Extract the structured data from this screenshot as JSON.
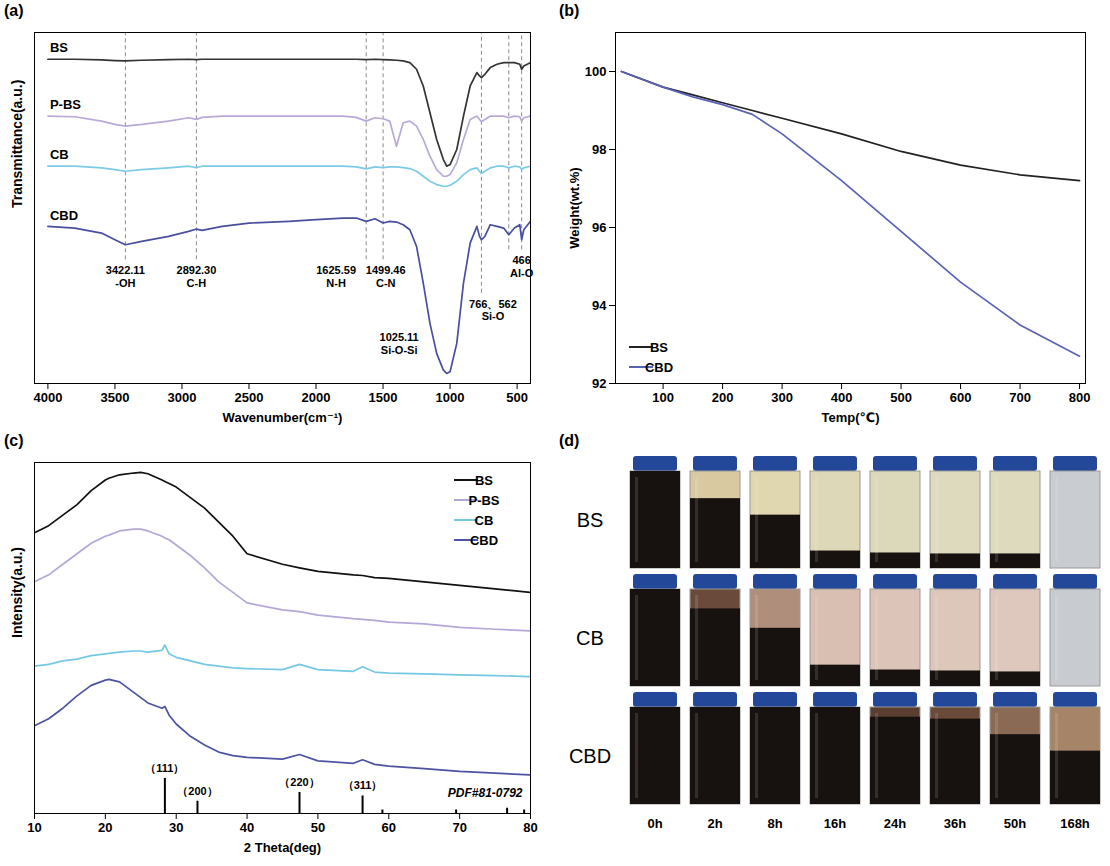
{
  "chart_data": [
    {
      "panel": "(a)",
      "type": "line",
      "x_label": "Wavenumber(cm⁻¹)",
      "y_label": "Transmittance(a.u.)",
      "xlim": [
        4100,
        400
      ],
      "xticks": [
        4000,
        3500,
        3000,
        2500,
        2000,
        1500,
        1000,
        500
      ],
      "ylim": [
        0,
        105
      ],
      "tick_labels": "x",
      "x": [
        4000,
        3800,
        3600,
        3500,
        3422.11,
        3300,
        3100,
        2950,
        2892.3,
        2850,
        2700,
        2500,
        2200,
        2000,
        1800,
        1700,
        1625.59,
        1560,
        1499.46,
        1450,
        1400,
        1350,
        1300,
        1250,
        1200,
        1150,
        1100,
        1050,
        1025.11,
        1000,
        950,
        900,
        850,
        800,
        780,
        766,
        740,
        700,
        650,
        600,
        562,
        520,
        480,
        466,
        450,
        400
      ],
      "series": [
        {
          "name": "BS",
          "color": "#333333",
          "values": [
            97,
            97,
            96.8,
            96.6,
            96.5,
            96.7,
            96.9,
            97,
            96.9,
            97,
            97,
            97,
            97,
            97,
            97,
            97,
            96.9,
            97,
            96.9,
            96.8,
            96.7,
            96.5,
            96,
            94,
            89,
            81,
            73,
            67,
            65,
            65.5,
            70,
            80,
            89,
            93,
            92,
            91.5,
            92.5,
            94.5,
            95.5,
            96,
            96,
            96,
            95.5,
            94,
            95,
            96
          ]
        },
        {
          "name": "P-BS",
          "color": "#b8a9d9",
          "values": [
            80,
            79.8,
            78.5,
            77.5,
            77,
            77.5,
            78.5,
            79.5,
            79,
            79.6,
            80,
            80,
            80,
            80,
            80,
            79.6,
            78.5,
            79.5,
            79.2,
            78.5,
            71,
            78,
            78.5,
            77,
            73,
            68,
            64,
            62,
            62,
            62.5,
            66,
            73,
            79,
            80,
            79,
            78.3,
            79,
            80,
            80,
            80,
            79.5,
            80,
            79.8,
            78.5,
            79.5,
            80
          ]
        },
        {
          "name": "CB",
          "color": "#7ccbe6",
          "values": [
            65,
            65,
            64.5,
            64,
            63.5,
            64,
            64.5,
            65,
            64.6,
            65,
            65,
            65,
            65,
            65,
            65,
            64.8,
            64.2,
            64.8,
            64.6,
            64.8,
            64.8,
            64.6,
            64.3,
            63.5,
            62,
            60.5,
            59.5,
            59,
            59,
            59.3,
            60.5,
            62.5,
            64,
            64.5,
            63.5,
            62.8,
            63.5,
            64.5,
            65,
            65,
            64.5,
            65,
            64.8,
            64,
            64.5,
            65
          ]
        },
        {
          "name": "CBD",
          "color": "#4a4e9e",
          "values": [
            47,
            46.5,
            45,
            43,
            41.5,
            42.5,
            44,
            45.5,
            46.2,
            45.8,
            47,
            48,
            48.5,
            49,
            49.5,
            49.5,
            48.5,
            49.3,
            48,
            48.5,
            48.3,
            47.5,
            46,
            41,
            30,
            18,
            9,
            4,
            3,
            3.5,
            12,
            30,
            42,
            47,
            44,
            43,
            44,
            47.5,
            47,
            46.5,
            44.5,
            46.5,
            47.5,
            43,
            46,
            48.5
          ]
        }
      ],
      "reference_lines": [
        3422.11,
        2892.3,
        1625.59,
        1499.46,
        766,
        562,
        466
      ],
      "annotations": [
        {
          "x": 3422.11,
          "y": 32,
          "text": [
            "3422.11",
            "-OH"
          ]
        },
        {
          "x": 2892.3,
          "y": 32,
          "text": [
            "2892.30",
            "C-H"
          ]
        },
        {
          "x": 1850,
          "y": 32,
          "text": [
            "1625.59",
            "N-H"
          ]
        },
        {
          "x": 1480,
          "y": 32,
          "text": [
            "1499.46",
            "C-N"
          ]
        },
        {
          "x": 1380,
          "y": 12,
          "text": [
            "1025.11",
            "Si-O-Si"
          ]
        },
        {
          "x": 680,
          "y": 22,
          "text": [
            "766、562",
            "Si-O"
          ]
        },
        {
          "x": 466,
          "y": 35,
          "text": [
            "466",
            "Al-O"
          ]
        }
      ]
    },
    {
      "panel": "(b)",
      "type": "line",
      "x_label": "Temp(℃)",
      "y_label": "Weight(wt.%)",
      "xlim": [
        20,
        810
      ],
      "xticks": [
        100,
        200,
        300,
        400,
        500,
        600,
        700,
        800
      ],
      "ylim": [
        92,
        101
      ],
      "yticks": [
        92,
        94,
        96,
        98,
        100
      ],
      "legend": "lower left",
      "x": [
        30,
        100,
        150,
        200,
        250,
        300,
        400,
        500,
        600,
        700,
        800
      ],
      "series": [
        {
          "name": "BS",
          "color": "#222222",
          "values": [
            100,
            99.6,
            99.4,
            99.2,
            99.0,
            98.8,
            98.4,
            97.95,
            97.6,
            97.35,
            97.2
          ]
        },
        {
          "name": "CBD",
          "color": "#5a62b5",
          "values": [
            100,
            99.6,
            99.35,
            99.15,
            98.9,
            98.4,
            97.2,
            95.9,
            94.6,
            93.5,
            92.7
          ]
        }
      ]
    },
    {
      "panel": "(c)",
      "type": "line",
      "x_label": "2 Theta(deg)",
      "y_label": "Intensity(a.u.)",
      "xlim": [
        10,
        80
      ],
      "xticks": [
        10,
        20,
        30,
        40,
        50,
        60,
        70,
        80
      ],
      "ylim": [
        0,
        100
      ],
      "tick_labels": "x",
      "legend": "upper right",
      "x": [
        10,
        12,
        14,
        16,
        18,
        20,
        20.5,
        22,
        24,
        25,
        26,
        28,
        28.4,
        29,
        30,
        32,
        34,
        36,
        38,
        40,
        45,
        47.4,
        50,
        55,
        56.3,
        58,
        60,
        65,
        70,
        75,
        80
      ],
      "series": [
        {
          "name": "BS",
          "color": "#111111",
          "values": [
            80,
            82,
            85,
            88,
            92,
            95,
            95.5,
            96.5,
            97,
            97.2,
            96.8,
            95,
            94.6,
            94,
            93,
            90,
            87,
            83,
            79,
            74,
            71,
            70,
            69,
            68,
            67.8,
            67.2,
            67,
            66,
            65,
            64,
            63
          ]
        },
        {
          "name": "P-BS",
          "color": "#b4a7d6",
          "values": [
            66,
            68,
            71,
            74,
            77,
            79,
            79.3,
            80.5,
            81,
            81,
            80.5,
            79,
            78.5,
            78,
            76.5,
            73.5,
            70,
            66,
            63,
            60,
            58,
            57.5,
            56.5,
            55.5,
            55.3,
            55,
            54.5,
            54,
            53,
            52.5,
            52
          ]
        },
        {
          "name": "CB",
          "color": "#74c8e4",
          "values": [
            42,
            42.5,
            43.5,
            44,
            45,
            45.5,
            45.6,
            46,
            46.3,
            46.3,
            46,
            46.5,
            48,
            45.5,
            44.5,
            43.5,
            42.5,
            42,
            41.5,
            41.3,
            41,
            42.5,
            41,
            40.5,
            41.8,
            40.3,
            40,
            39.8,
            39.5,
            39.3,
            39
          ]
        },
        {
          "name": "CBD",
          "color": "#4d52a3",
          "values": [
            25,
            27,
            30,
            33.5,
            36.5,
            38,
            38.2,
            37.5,
            34.5,
            33,
            31.5,
            30,
            30.5,
            28,
            25.5,
            22,
            19.5,
            17.5,
            16.5,
            16,
            15.5,
            16.8,
            15,
            14.3,
            15.3,
            14,
            13.5,
            12.8,
            12,
            11.5,
            11
          ]
        }
      ],
      "reference": {
        "name": "PDF#81-0792",
        "color": "#000000",
        "x": [
          28.4,
          33,
          47.4,
          56.3,
          59.1,
          69.5,
          76.7,
          79.1
        ],
        "values": [
          10,
          3.5,
          6,
          5,
          1,
          1,
          1.5,
          1
        ],
        "labels": [
          "（111）",
          "（200）",
          "（220）",
          "（311）",
          null,
          null,
          null,
          null
        ]
      }
    },
    {
      "panel": "(d)",
      "type": "photo_grid",
      "columns": [
        "0h",
        "2h",
        "8h",
        "16h",
        "24h",
        "36h",
        "50h",
        "168h"
      ],
      "rows": [
        {
          "name": "BS",
          "colors": [
            "#1c1712",
            "#d9c9a0",
            "#e0d6b0",
            "#ddd8b8",
            "#dcd8ba",
            "#dedabd",
            "#dddabd",
            "#c9ccd0"
          ],
          "values": [
            100,
            72,
            55,
            18,
            16,
            15,
            15,
            0
          ]
        },
        {
          "name": "CB",
          "colors": [
            "#2a1c16",
            "#6a4a3a",
            "#b08e7c",
            "#d8bfb2",
            "#dcc4b8",
            "#ddc6ba",
            "#dec8bd",
            "#c8ccd0"
          ],
          "values": [
            100,
            80,
            60,
            22,
            17,
            16,
            15,
            0
          ]
        },
        {
          "name": "CBD",
          "colors": [
            "#1a1512",
            "#1a1512",
            "#1a1512",
            "#1a1512",
            "#5a3e30",
            "#6a4a38",
            "#8a6a55",
            "#a58468"
          ],
          "values": [
            100,
            100,
            100,
            100,
            90,
            88,
            72,
            55
          ]
        }
      ]
    }
  ]
}
